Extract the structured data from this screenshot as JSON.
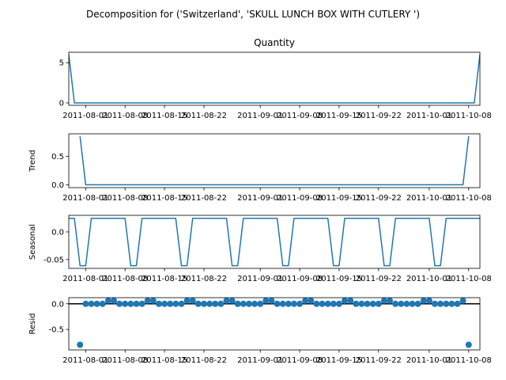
{
  "figure": {
    "suptitle": "Decomposition for ('Switzerland', 'SKULL LUNCH BOX WITH CUTLERY ')"
  },
  "colors": {
    "line": "#1f77b4",
    "axis": "#000000",
    "zero_line": "#000000"
  },
  "chart_data": [
    {
      "type": "line",
      "name": "observed",
      "title": "Quantity",
      "ylabel": "",
      "x_start": "2011-07-29",
      "x_end": "2011-10-10",
      "ylim": [
        -0.3,
        6.3
      ],
      "yticks": [
        0,
        5
      ],
      "xticks": [
        "2011-08-01",
        "2011-08-08",
        "2011-08-15",
        "2011-08-22",
        "2011-09-01",
        "2011-09-08",
        "2011-09-15",
        "2011-09-22",
        "2011-10-01",
        "2011-10-08"
      ],
      "x": [
        "2011-07-29",
        "2011-07-30",
        "2011-10-09",
        "2011-10-10"
      ],
      "values": [
        6,
        0,
        0,
        6
      ]
    },
    {
      "type": "line",
      "name": "trend",
      "title": "",
      "ylabel": "Trend",
      "x_start": "2011-07-29",
      "x_end": "2011-10-10",
      "ylim": [
        -0.05,
        0.9
      ],
      "yticks": [
        0.0,
        0.5
      ],
      "xticks": [
        "2011-08-01",
        "2011-08-08",
        "2011-08-15",
        "2011-08-22",
        "2011-09-01",
        "2011-09-08",
        "2011-09-15",
        "2011-09-22",
        "2011-10-01",
        "2011-10-08"
      ],
      "x": [
        "2011-07-31",
        "2011-08-01",
        "2011-10-07",
        "2011-10-08"
      ],
      "values": [
        0.857,
        0,
        0,
        0.857
      ]
    },
    {
      "type": "line",
      "name": "seasonal",
      "title": "",
      "ylabel": "Seasonal",
      "x_start": "2011-07-29",
      "x_end": "2011-10-10",
      "ylim": [
        -0.066,
        0.03
      ],
      "yticks": [
        -0.05,
        0.0
      ],
      "xticks": [
        "2011-08-01",
        "2011-08-08",
        "2011-08-15",
        "2011-08-22",
        "2011-09-01",
        "2011-09-08",
        "2011-09-15",
        "2011-09-22",
        "2011-10-01",
        "2011-10-08"
      ],
      "period_pattern": [
        0.0245,
        0.0245,
        -0.0612,
        -0.0612,
        0.0245,
        0.0245,
        0.0245,
        0.0245,
        0.0245
      ]
    },
    {
      "type": "scatter",
      "name": "resid",
      "title": "",
      "ylabel": "Resid",
      "x_start": "2011-07-29",
      "x_end": "2011-10-10",
      "ylim": [
        -0.9,
        0.12
      ],
      "yticks": [
        -0.5,
        0.0
      ],
      "xticks": [
        "2011-08-01",
        "2011-08-08",
        "2011-08-15",
        "2011-08-22",
        "2011-09-01",
        "2011-09-08",
        "2011-09-15",
        "2011-09-22",
        "2011-10-01",
        "2011-10-08"
      ],
      "pattern_values": [
        0.061,
        0.061,
        0.0,
        0.0,
        0.0,
        0.0,
        0.0
      ],
      "outliers": [
        {
          "x": "2011-07-31",
          "value": -0.8
        },
        {
          "x": "2011-10-08",
          "value": -0.8
        }
      ]
    }
  ]
}
